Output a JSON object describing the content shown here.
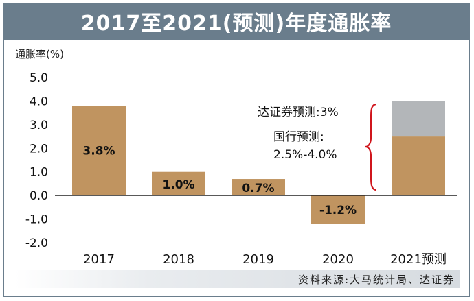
{
  "chart_data": {
    "type": "bar",
    "title": "2017至2021(预测)年度通胀率",
    "ylabel": "通胀率(%)",
    "ylim": [
      -2.0,
      5.0
    ],
    "yticks": [
      "5.0",
      "4.0",
      "3.0",
      "2.0",
      "1.0",
      "0.0",
      "-1.0",
      "-2.0"
    ],
    "categories": [
      "2017",
      "2018",
      "2019",
      "2020",
      "2021预测"
    ],
    "values": [
      3.8,
      1.0,
      0.7,
      -1.2,
      2.5
    ],
    "data_labels": [
      "3.8%",
      "1.0%",
      "0.7%",
      "-1.2%",
      ""
    ],
    "forecast_range": {
      "low": 2.5,
      "high": 4.0
    },
    "annotations": {
      "line1": "达证券预测:3%",
      "line2": "国行预测:",
      "line3": "2.5%-4.0%"
    },
    "colors": {
      "bar": "#c09460",
      "range": "#b3b6b9",
      "brace": "#d0151c",
      "header": "#6a7d8c"
    }
  },
  "source": "资料来源:大马统计局、达证券"
}
